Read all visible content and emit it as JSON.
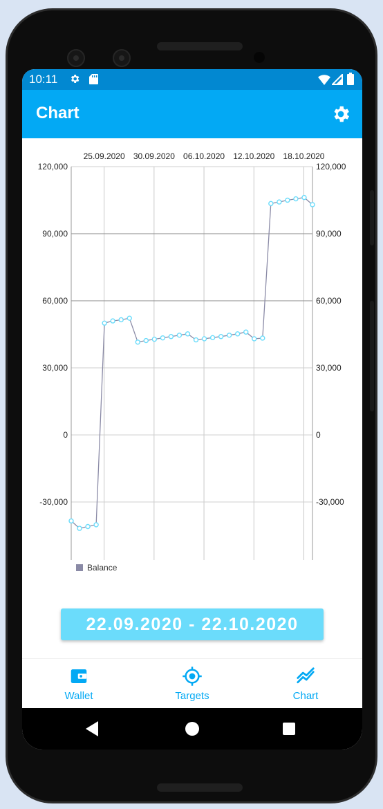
{
  "status_bar": {
    "time": "10:11",
    "icons": [
      "gear-icon",
      "sd-card-icon",
      "wifi-icon",
      "signal-icon",
      "battery-icon"
    ]
  },
  "app_bar": {
    "title": "Chart",
    "action_icon": "gear-icon"
  },
  "colors": {
    "status_bar": "#0288d1",
    "app_bar": "#03a9f4",
    "accent": "#03a9f4",
    "date_button": "#6bdcfb",
    "series_line": "#8a8aa6",
    "series_marker": "#6bdcfb"
  },
  "chart_data": {
    "type": "line",
    "x_tick_labels": [
      "25.09.2020",
      "30.09.2020",
      "06.10.2020",
      "12.10.2020",
      "18.10.2020"
    ],
    "y_tick_labels": [
      "120,000",
      "90,000",
      "60,000",
      "30,000",
      "0",
      "-30,000"
    ],
    "y_ticks": [
      120000,
      90000,
      60000,
      30000,
      0,
      -30000
    ],
    "ylim": [
      -56000,
      120000
    ],
    "axes": "left and right",
    "grid": true,
    "legend_position": "bottom-left",
    "series": [
      {
        "name": "Balance",
        "values": [
          -38500,
          -41800,
          -41000,
          -40200,
          50000,
          51000,
          51500,
          52200,
          41500,
          42200,
          42800,
          43400,
          44000,
          44600,
          45200,
          42500,
          43000,
          43500,
          44000,
          44600,
          45200,
          46000,
          43000,
          43300,
          103500,
          104200,
          105000,
          105600,
          106200,
          103000
        ]
      }
    ]
  },
  "date_range": {
    "label": "22.09.2020 - 22.10.2020"
  },
  "bottom_nav": {
    "items": [
      {
        "label": "Wallet",
        "icon": "wallet-icon"
      },
      {
        "label": "Targets",
        "icon": "target-icon"
      },
      {
        "label": "Chart",
        "icon": "chart-line-icon"
      }
    ]
  },
  "system_nav": {
    "icons": [
      "back-icon",
      "home-icon",
      "recents-icon"
    ]
  }
}
